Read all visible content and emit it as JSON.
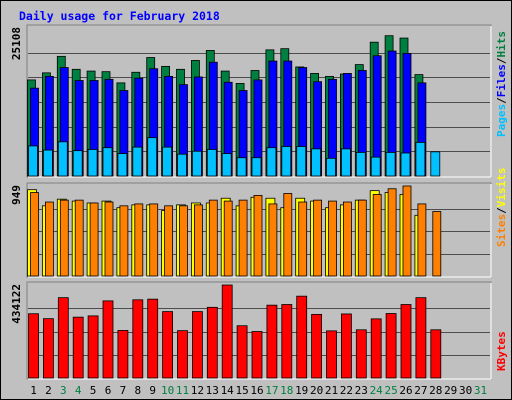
{
  "chart_data": {
    "type": "bar",
    "title": "Daily usage for February 2018",
    "categories": [
      "1",
      "2",
      "3",
      "4",
      "5",
      "6",
      "7",
      "8",
      "9",
      "10",
      "11",
      "12",
      "13",
      "14",
      "15",
      "16",
      "17",
      "18",
      "19",
      "20",
      "21",
      "22",
      "23",
      "24",
      "25",
      "26",
      "27",
      "28",
      "29",
      "30",
      "31"
    ],
    "weekend_days": [
      "3",
      "4",
      "10",
      "11",
      "17",
      "18",
      "24",
      "25",
      "31"
    ],
    "panels": [
      {
        "name": "requests",
        "max_label": "25108",
        "ylim": [
          0,
          25108
        ],
        "legend": [
          "Pages",
          "/",
          "Files",
          "/",
          "Hits"
        ],
        "series": [
          {
            "name": "Hits",
            "color": "#008040",
            "values": [
              16300,
              17500,
              20300,
              18100,
              17800,
              17700,
              15800,
              17600,
              20100,
              18600,
              18100,
              19600,
              21300,
              17800,
              15700,
              17900,
              21400,
              21600,
              18500,
              17400,
              16900,
              17300,
              18900,
              22700,
              23800,
              23400,
              17200,
              null,
              null,
              null,
              null
            ]
          },
          {
            "name": "Files",
            "color": "#0000ff",
            "values": [
              14900,
              16900,
              18400,
              16200,
              16200,
              16400,
              14500,
              16600,
              18200,
              16900,
              15500,
              16800,
              19300,
              15900,
              14500,
              16300,
              19500,
              19500,
              18400,
              16000,
              16400,
              17400,
              17900,
              20400,
              21200,
              20800,
              15800,
              null,
              null,
              null,
              null
            ]
          },
          {
            "name": "Pages",
            "color": "#00c0ff",
            "values": [
              5100,
              4400,
              5800,
              4300,
              4500,
              4800,
              3800,
              4900,
              6500,
              4900,
              3700,
              4200,
              4500,
              3800,
              3100,
              3100,
              4800,
              5000,
              5000,
              4600,
              3000,
              4600,
              4000,
              3200,
              4000,
              3900,
              5700,
              4100,
              null,
              null,
              null
            ]
          }
        ]
      },
      {
        "name": "sites",
        "max_label": "949",
        "ylim": [
          0,
          949
        ],
        "legend": [
          "Sites",
          "/",
          "Visits"
        ],
        "series": [
          {
            "name": "Visits",
            "color": "#ffff00",
            "values": [
              910,
              740,
              810,
              790,
              770,
              790,
              720,
              750,
              750,
              690,
              750,
              770,
              770,
              820,
              740,
              830,
              820,
              720,
              820,
              790,
              720,
              750,
              800,
              900,
              880,
              860,
              640,
              null,
              null,
              null,
              null
            ]
          },
          {
            "name": "Sites",
            "color": "#ff8000",
            "values": [
              880,
              780,
              800,
              800,
              770,
              780,
              740,
              760,
              760,
              740,
              740,
              750,
              800,
              790,
              800,
              850,
              760,
              870,
              780,
              800,
              790,
              780,
              800,
              860,
              920,
              949,
              760,
              680,
              null,
              null,
              null
            ]
          }
        ]
      },
      {
        "name": "kbytes",
        "max_label": "434122",
        "ylim": [
          0,
          434122
        ],
        "legend": [
          "KBytes"
        ],
        "series": [
          {
            "name": "KBytes",
            "color": "#ff0000",
            "values": [
              300000,
              277000,
              375000,
              284000,
              290000,
              360000,
              222000,
              365000,
              368000,
              310000,
              221000,
              310000,
              330000,
              434000,
              244000,
              217000,
              340000,
              343000,
              382000,
              297000,
              220000,
              299000,
              225000,
              276000,
              301000,
              343000,
              375000,
              225000,
              null,
              null,
              null
            ]
          }
        ]
      }
    ]
  },
  "colors": {
    "background": "#c0c0c0",
    "title": "#0000ff",
    "weekday_label": "#000000",
    "weekend_label": "#008040",
    "legend_separator": "#000000",
    "bar_outline": "#000000"
  }
}
